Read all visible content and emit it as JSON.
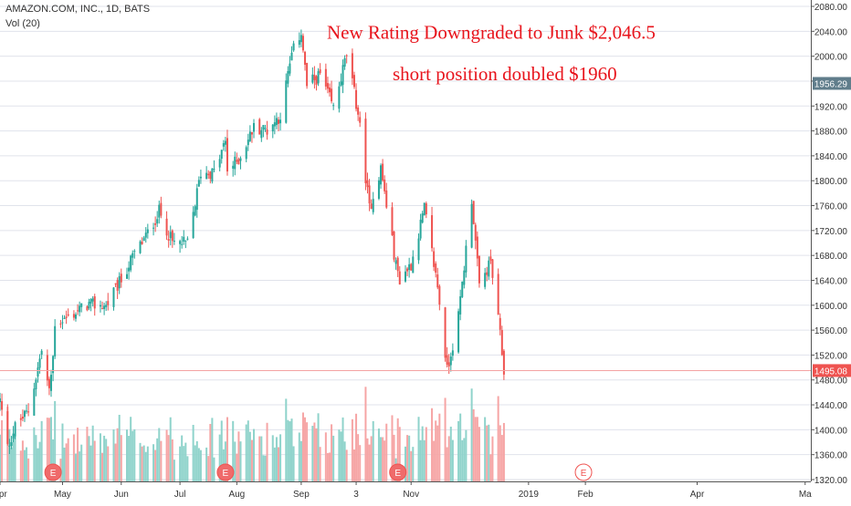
{
  "header": {
    "title": "AMAZON.COM, INC., 1D, BATS",
    "volume_label": "Vol (20)"
  },
  "annotations": [
    {
      "text": "New Rating Downgraded to Junk $2,046.5",
      "price": 2040
    },
    {
      "text": "short position doubled $1960",
      "price": 1973
    }
  ],
  "price_axis": {
    "ticks": [
      "2080.00",
      "2040.00",
      "2000.00",
      "1960.00",
      "1920.00",
      "1880.00",
      "1840.00",
      "1800.00",
      "1760.00",
      "1720.00",
      "1680.00",
      "1640.00",
      "1600.00",
      "1560.00",
      "1520.00",
      "1480.00",
      "1440.00",
      "1400.00",
      "1360.00",
      "1320.00"
    ],
    "marker_high": {
      "label": "1956.29",
      "value": 1956.29,
      "color": "#607d8b"
    },
    "marker_last": {
      "label": "1495.08",
      "value": 1495.08,
      "color": "#ef5350"
    }
  },
  "time_axis": {
    "labels": [
      "Apr",
      "May",
      "Jun",
      "Jul",
      "Aug",
      "Sep",
      "3",
      "Nov",
      "2019",
      "Feb",
      "Apr",
      "Ma"
    ]
  },
  "earnings_markers": [
    {
      "label": "E",
      "kind": "past"
    },
    {
      "label": "E",
      "kind": "past"
    },
    {
      "label": "E",
      "kind": "past"
    },
    {
      "label": "E",
      "kind": "upcoming"
    }
  ],
  "colors": {
    "up": "#26a69a",
    "down": "#ef5350",
    "vol_up": "#8fd3cb",
    "vol_down": "#f6a5a5",
    "grid": "#e0e3eb",
    "annotation": "#e8141c"
  },
  "chart_data": {
    "type": "candlestick",
    "title": "AMAZON.COM, INC., 1D, BATS",
    "ylim": [
      1320,
      2080
    ],
    "x_range": [
      "2018-03-29",
      "2019-05-31"
    ],
    "x_labels": [
      "Apr",
      "May",
      "Jun",
      "Jul",
      "Aug",
      "Sep",
      "3",
      "Nov",
      "2019",
      "Feb",
      "Apr",
      "Ma"
    ],
    "close_path": [
      [
        "2018-03-29",
        1447
      ],
      [
        "2018-04-02",
        1372
      ],
      [
        "2018-04-06",
        1405
      ],
      [
        "2018-04-13",
        1430
      ],
      [
        "2018-04-20",
        1527
      ],
      [
        "2018-04-24",
        1460
      ],
      [
        "2018-04-26",
        1517
      ],
      [
        "2018-04-27",
        1572
      ],
      [
        "2018-05-04",
        1580
      ],
      [
        "2018-05-14",
        1601
      ],
      [
        "2018-05-24",
        1599
      ],
      [
        "2018-06-01",
        1641
      ],
      [
        "2018-06-08",
        1683
      ],
      [
        "2018-06-15",
        1715
      ],
      [
        "2018-06-21",
        1751
      ],
      [
        "2018-06-28",
        1700
      ],
      [
        "2018-07-06",
        1699
      ],
      [
        "2018-07-13",
        1813
      ],
      [
        "2018-07-20",
        1813
      ],
      [
        "2018-07-26",
        1863
      ],
      [
        "2018-07-27",
        1817
      ],
      [
        "2018-08-02",
        1834
      ],
      [
        "2018-08-10",
        1886
      ],
      [
        "2018-08-17",
        1882
      ],
      [
        "2018-08-24",
        1905
      ],
      [
        "2018-08-30",
        2002
      ],
      [
        "2018-09-04",
        2040
      ],
      [
        "2018-09-07",
        1952
      ],
      [
        "2018-09-14",
        1970
      ],
      [
        "2018-09-21",
        1916
      ],
      [
        "2018-09-28",
        2003
      ],
      [
        "2018-10-04",
        1909
      ],
      [
        "2018-10-10",
        1755
      ],
      [
        "2018-10-16",
        1820
      ],
      [
        "2018-10-24",
        1664
      ],
      [
        "2018-10-26",
        1642
      ],
      [
        "2018-11-01",
        1666
      ],
      [
        "2018-11-08",
        1755
      ],
      [
        "2018-11-15",
        1631
      ],
      [
        "2018-11-20",
        1495
      ],
      [
        "2018-11-26",
        1581
      ],
      [
        "2018-12-03",
        1772
      ],
      [
        "2018-12-07",
        1629
      ],
      [
        "2018-12-13",
        1670
      ],
      [
        "2018-12-18",
        1551
      ],
      [
        "2018-12-20",
        1495
      ]
    ],
    "volume_range_millions": [
      2,
      13
    ],
    "earnings_dates": [
      "2018-04-26",
      "2018-07-26",
      "2018-10-25",
      "2019-01-31"
    ]
  }
}
